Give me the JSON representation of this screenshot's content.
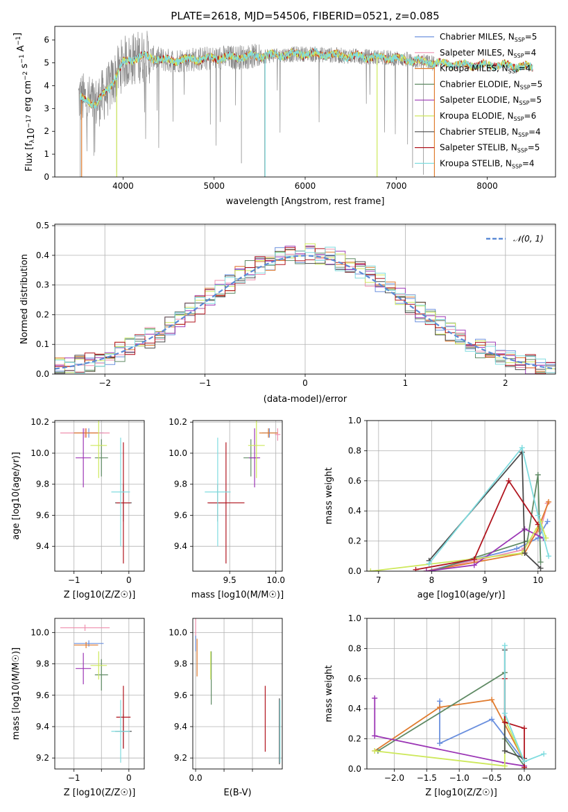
{
  "title": "PLATE=2618, MJD=54506, FIBERID=0521, z=0.085",
  "colors": {
    "chabrier_miles": "#6a8fde",
    "salpeter_miles": "#ef8fae",
    "kroupa_miles": "#e07b2e",
    "chabrier_elodie": "#5f8a64",
    "salpeter_elodie": "#9b35b5",
    "kroupa_elodie": "#cde85a",
    "chabrier_stelib": "#4a4a4a",
    "salpeter_stelib": "#b0141e",
    "kroupa_stelib": "#7fdcdf",
    "data_spectrum": "#8a8a8a",
    "normal_curve": "#5b8ad6"
  },
  "chart_data": [
    {
      "type": "line",
      "name": "spectrum",
      "xlabel": "wavelength [Angstrom, rest frame]",
      "ylabel_parts": [
        "Flux [f",
        "λ",
        "10",
        "−17",
        " erg cm",
        "−2",
        " s",
        "−1",
        " A",
        "−1",
        "]"
      ],
      "xlim": [
        3250,
        8750
      ],
      "ylim": [
        0,
        6.6
      ],
      "xticks": [
        4000,
        5000,
        6000,
        7000,
        8000
      ],
      "yticks": [
        0,
        1,
        2,
        3,
        4,
        5,
        6
      ],
      "legend_position": "upper right",
      "legend": [
        {
          "label": "Chabrier MILES, N",
          "sub": "SSP",
          "tail": "=5",
          "color_key": "chabrier_miles"
        },
        {
          "label": "Salpeter MILES, N",
          "sub": "SSP",
          "tail": "=4",
          "color_key": "salpeter_miles"
        },
        {
          "label": "Kroupa MILES, N",
          "sub": "SSP",
          "tail": "=4",
          "color_key": "kroupa_miles"
        },
        {
          "label": "Chabrier ELODIE, N",
          "sub": "SSP",
          "tail": "=5",
          "color_key": "chabrier_elodie"
        },
        {
          "label": "Salpeter ELODIE, N",
          "sub": "SSP",
          "tail": "=5",
          "color_key": "salpeter_elodie"
        },
        {
          "label": "Kroupa ELODIE, N",
          "sub": "SSP",
          "tail": "=6",
          "color_key": "kroupa_elodie"
        },
        {
          "label": "Chabrier STELIB, N",
          "sub": "SSP",
          "tail": "=4",
          "color_key": "chabrier_stelib"
        },
        {
          "label": "Salpeter STELIB, N",
          "sub": "SSP",
          "tail": "=5",
          "color_key": "salpeter_stelib"
        },
        {
          "label": "Kroupa STELIB, N",
          "sub": "SSP",
          "tail": "=4",
          "color_key": "kroupa_stelib"
        }
      ],
      "continuum_x": [
        3500,
        3700,
        3850,
        4000,
        4200,
        4500,
        5000,
        5500,
        6000,
        6500,
        7000,
        7400,
        7800,
        8200,
        8500
      ],
      "continuum_y": [
        3.5,
        3.2,
        3.9,
        5.0,
        5.3,
        5.1,
        5.2,
        5.3,
        5.4,
        5.3,
        5.2,
        5.0,
        4.9,
        4.9,
        4.8
      ],
      "model_xrange": [
        3530,
        8500
      ],
      "data_xrange": [
        3510,
        7420
      ]
    },
    {
      "type": "step",
      "name": "residual-histogram",
      "xlabel": "(data-model)/error",
      "ylabel": "Normed distribution",
      "xlim": [
        -2.5,
        2.5
      ],
      "ylim": [
        0,
        0.505
      ],
      "xticks": [
        -2,
        -1,
        0,
        1,
        2
      ],
      "yticks": [
        0.0,
        0.1,
        0.2,
        0.3,
        0.4,
        0.5
      ],
      "bin_width": 0.1,
      "legend_position": "upper right",
      "legend_label": "𝒩(0, 1)",
      "series_color_keys": [
        "chabrier_miles",
        "salpeter_miles",
        "kroupa_miles",
        "chabrier_elodie",
        "salpeter_elodie",
        "kroupa_elodie",
        "chabrier_stelib",
        "salpeter_stelib",
        "kroupa_stelib"
      ]
    },
    {
      "type": "errorbar",
      "name": "age-vs-Z",
      "xlabel": "Z [log10(Z/Z☉)]",
      "ylabel": "age  [log10(age/yr)]",
      "xlim": [
        -1.35,
        0.28
      ],
      "ylim": [
        9.24,
        10.21
      ],
      "xticks": [
        -1,
        -0.5,
        0
      ],
      "xticklabels": [
        "−1",
        "",
        "0"
      ],
      "yticks": [
        9.4,
        9.6,
        9.8,
        10.0,
        10.2
      ],
      "points": [
        {
          "color_key": "chabrier_miles",
          "x": -0.73,
          "xerr": 0.27,
          "y": 10.13,
          "yerr": 0.03
        },
        {
          "color_key": "salpeter_miles",
          "x": -0.8,
          "xerr": 0.45,
          "y": 10.13,
          "yerr": 0.03
        },
        {
          "color_key": "kroupa_miles",
          "x": -0.78,
          "xerr": 0.22,
          "y": 10.13,
          "yerr": 0.03
        },
        {
          "color_key": "chabrier_elodie",
          "x": -0.5,
          "xerr": 0.12,
          "y": 9.97,
          "yerr": 0.12
        },
        {
          "color_key": "salpeter_elodie",
          "x": -0.83,
          "xerr": 0.14,
          "y": 9.97,
          "yerr": 0.19
        },
        {
          "color_key": "kroupa_elodie",
          "x": -0.55,
          "xerr": 0.15,
          "y": 10.05,
          "yerr": 0.21
        },
        {
          "color_key": "chabrier_stelib",
          "x": -0.1,
          "xerr": 0.15,
          "y": 9.68,
          "yerr": 0.12
        },
        {
          "color_key": "salpeter_stelib",
          "x": -0.1,
          "xerr": 0.13,
          "y": 9.68,
          "yerr": 0.39
        },
        {
          "color_key": "kroupa_stelib",
          "x": -0.15,
          "xerr": 0.17,
          "y": 9.75,
          "yerr": 0.35
        }
      ]
    },
    {
      "type": "errorbar",
      "name": "age-vs-mass",
      "xlabel": "mass [log10(M/M☉)]",
      "xlim": [
        9.1,
        10.07
      ],
      "ylim": [
        9.24,
        10.21
      ],
      "xticks": [
        9.5,
        10.0
      ],
      "yticks": [
        9.4,
        9.6,
        9.8,
        10.0,
        10.2
      ],
      "points": [
        {
          "color_key": "chabrier_miles",
          "x": 9.93,
          "xerr": 0.08,
          "y": 10.13,
          "yerr": 0.03
        },
        {
          "color_key": "salpeter_miles",
          "x": 10.02,
          "xerr": 0.03,
          "y": 10.12,
          "yerr": 0.04
        },
        {
          "color_key": "kroupa_miles",
          "x": 9.92,
          "xerr": 0.1,
          "y": 10.13,
          "yerr": 0.03
        },
        {
          "color_key": "chabrier_elodie",
          "x": 9.73,
          "xerr": 0.08,
          "y": 9.97,
          "yerr": 0.12
        },
        {
          "color_key": "salpeter_elodie",
          "x": 9.77,
          "xerr": 0.06,
          "y": 9.97,
          "yerr": 0.19
        },
        {
          "color_key": "kroupa_elodie",
          "x": 9.79,
          "xerr": 0.09,
          "y": 10.05,
          "yerr": 0.21
        },
        {
          "color_key": "chabrier_stelib",
          "x": 9.37,
          "xerr": 0.1,
          "y": 9.68,
          "yerr": 0.12
        },
        {
          "color_key": "salpeter_stelib",
          "x": 9.46,
          "xerr": 0.2,
          "y": 9.68,
          "yerr": 0.39
        },
        {
          "color_key": "kroupa_stelib",
          "x": 9.37,
          "xerr": 0.14,
          "y": 9.75,
          "yerr": 0.35
        }
      ]
    },
    {
      "type": "line",
      "name": "mass-weight-vs-age",
      "xlabel": "age  [log10(age/yr)]",
      "ylabel": "mass weight",
      "xlim": [
        6.78,
        10.33
      ],
      "ylim": [
        0,
        1
      ],
      "xticks": [
        7,
        8,
        9,
        10
      ],
      "yticks": [
        0.0,
        0.2,
        0.4,
        0.6,
        0.8,
        1.0
      ],
      "series": [
        {
          "color_key": "chabrier_miles",
          "x": [
            7.9,
            9.6,
            10.0,
            10.18
          ],
          "y": [
            0.0,
            0.15,
            0.22,
            0.33
          ]
        },
        {
          "color_key": "salpeter_miles",
          "x": [
            7.9,
            9.7,
            10.05,
            10.18
          ],
          "y": [
            0.0,
            0.14,
            0.28,
            0.45
          ]
        },
        {
          "color_key": "kroupa_miles",
          "x": [
            7.9,
            9.75,
            10.0,
            10.2
          ],
          "y": [
            0.0,
            0.12,
            0.28,
            0.46
          ]
        },
        {
          "color_key": "chabrier_elodie",
          "x": [
            8.0,
            9.8,
            10.0,
            10.05
          ],
          "y": [
            0.0,
            0.2,
            0.64,
            0.06
          ]
        },
        {
          "color_key": "salpeter_elodie",
          "x": [
            7.9,
            8.8,
            9.75,
            10.1
          ],
          "y": [
            0.0,
            0.04,
            0.28,
            0.22
          ]
        },
        {
          "color_key": "kroupa_elodie",
          "x": [
            6.85,
            9.7,
            10.05,
            10.15
          ],
          "y": [
            0.0,
            0.12,
            0.33,
            0.22
          ]
        },
        {
          "color_key": "chabrier_stelib",
          "x": [
            7.95,
            9.7,
            9.75,
            10.05
          ],
          "y": [
            0.07,
            0.79,
            0.12,
            0.02
          ]
        },
        {
          "color_key": "salpeter_stelib",
          "x": [
            7.7,
            8.8,
            9.45,
            10.0
          ],
          "y": [
            0.01,
            0.08,
            0.6,
            0.31
          ]
        },
        {
          "color_key": "kroupa_stelib",
          "x": [
            7.95,
            9.7,
            10.0,
            10.2
          ],
          "y": [
            0.05,
            0.82,
            0.37,
            0.1
          ]
        }
      ]
    },
    {
      "type": "errorbar",
      "name": "mass-vs-Z",
      "xlabel": "Z [log10(Z/Z☉)]",
      "ylabel": "mass [log10(M/M☉)]",
      "xlim": [
        -1.35,
        0.28
      ],
      "ylim": [
        9.13,
        10.09
      ],
      "xticks": [
        -1,
        -0.5,
        0
      ],
      "xticklabels": [
        "−1",
        "",
        "0"
      ],
      "yticks": [
        9.2,
        9.4,
        9.6,
        9.8,
        10.0
      ],
      "points": [
        {
          "color_key": "chabrier_miles",
          "x": -0.73,
          "xerr": 0.27,
          "y": 9.93,
          "yerr": 0.02
        },
        {
          "color_key": "salpeter_miles",
          "x": -0.8,
          "xerr": 0.45,
          "y": 10.03,
          "yerr": 0.02
        },
        {
          "color_key": "kroupa_miles",
          "x": -0.78,
          "xerr": 0.22,
          "y": 9.92,
          "yerr": 0.02
        },
        {
          "color_key": "chabrier_elodie",
          "x": -0.5,
          "xerr": 0.12,
          "y": 9.73,
          "yerr": 0.1
        },
        {
          "color_key": "salpeter_elodie",
          "x": -0.83,
          "xerr": 0.14,
          "y": 9.77,
          "yerr": 0.1
        },
        {
          "color_key": "kroupa_elodie",
          "x": -0.55,
          "xerr": 0.15,
          "y": 9.79,
          "yerr": 0.09
        },
        {
          "color_key": "chabrier_stelib",
          "x": -0.1,
          "xerr": 0.15,
          "y": 9.37,
          "yerr": 0.11
        },
        {
          "color_key": "salpeter_stelib",
          "x": -0.1,
          "xerr": 0.13,
          "y": 9.46,
          "yerr": 0.2
        },
        {
          "color_key": "kroupa_stelib",
          "x": -0.15,
          "xerr": 0.17,
          "y": 9.37,
          "yerr": 0.2
        }
      ]
    },
    {
      "type": "errorbar",
      "name": "mass-vs-ebv",
      "xlabel": "E(B-V)",
      "xlim": [
        -0.01,
        0.305
      ],
      "ylim": [
        9.13,
        10.09
      ],
      "xticks": [
        0.0,
        0.1,
        0.2
      ],
      "xticklabels": [
        "0.0",
        "",
        ""
      ],
      "yticks": [
        9.2,
        9.4,
        9.6,
        9.8,
        10.0
      ],
      "points": [
        {
          "color_key": "salpeter_miles",
          "x": 0.0,
          "xerr": 0.0,
          "y": 10.03,
          "yerr": 0.07
        },
        {
          "color_key": "kroupa_miles",
          "x": 0.005,
          "xerr": 0.0,
          "y": 9.84,
          "yerr": 0.12
        },
        {
          "color_key": "chabrier_miles",
          "x": 0.0,
          "xerr": 0.0,
          "y": 9.93,
          "yerr": 0.05
        },
        {
          "color_key": "chabrier_elodie",
          "x": 0.055,
          "xerr": 0.0,
          "y": 9.71,
          "yerr": 0.17
        },
        {
          "color_key": "kroupa_elodie",
          "x": 0.053,
          "xerr": 0.0,
          "y": 9.79,
          "yerr": 0.09
        },
        {
          "color_key": "salpeter_stelib",
          "x": 0.245,
          "xerr": 0.0,
          "y": 9.45,
          "yerr": 0.21
        },
        {
          "color_key": "chabrier_stelib",
          "x": 0.295,
          "xerr": 0.0,
          "y": 9.37,
          "yerr": 0.21
        },
        {
          "color_key": "kroupa_stelib",
          "x": 0.297,
          "xerr": 0.0,
          "y": 9.37,
          "yerr": 0.2
        }
      ]
    },
    {
      "type": "line",
      "name": "mass-weight-vs-Z",
      "xlabel": "Z [log10(Z/Z☉)]",
      "ylabel": "mass weight",
      "xlim": [
        -2.42,
        0.48
      ],
      "ylim": [
        0,
        1
      ],
      "xticks": [
        -2.0,
        -1.5,
        -1.0,
        -0.5,
        0.0
      ],
      "yticks": [
        0.0,
        0.2,
        0.4,
        0.6,
        0.8,
        1.0
      ],
      "series": [
        {
          "color_key": "chabrier_miles",
          "x": [
            -1.3,
            -1.3,
            -0.5,
            0.0
          ],
          "y": [
            0.45,
            0.17,
            0.33,
            0.05
          ]
        },
        {
          "color_key": "kroupa_miles",
          "x": [
            -2.3,
            -1.3,
            -0.5,
            0.0
          ],
          "y": [
            0.12,
            0.41,
            0.46,
            0.05
          ]
        },
        {
          "color_key": "chabrier_elodie",
          "x": [
            -2.25,
            -0.3,
            -0.3,
            0.0
          ],
          "y": [
            0.12,
            0.64,
            0.2,
            0.02
          ]
        },
        {
          "color_key": "salpeter_elodie",
          "x": [
            -2.3,
            -2.3,
            -0.3,
            0.0
          ],
          "y": [
            0.47,
            0.22,
            0.04,
            0.02
          ]
        },
        {
          "color_key": "kroupa_elodie",
          "x": [
            -2.3,
            -0.3,
            -0.3,
            0.0
          ],
          "y": [
            0.12,
            0.02,
            0.33,
            0.05
          ]
        },
        {
          "color_key": "chabrier_stelib",
          "x": [
            -0.3,
            -0.3,
            0.0
          ],
          "y": [
            0.79,
            0.12,
            0.07
          ]
        },
        {
          "color_key": "salpeter_stelib",
          "x": [
            -0.3,
            -0.3,
            0.0,
            0.0
          ],
          "y": [
            0.6,
            0.31,
            0.27,
            0.01
          ]
        },
        {
          "color_key": "kroupa_stelib",
          "x": [
            -0.3,
            -0.3,
            0.0,
            0.3
          ],
          "y": [
            0.82,
            0.37,
            0.05,
            0.1
          ]
        }
      ]
    }
  ]
}
